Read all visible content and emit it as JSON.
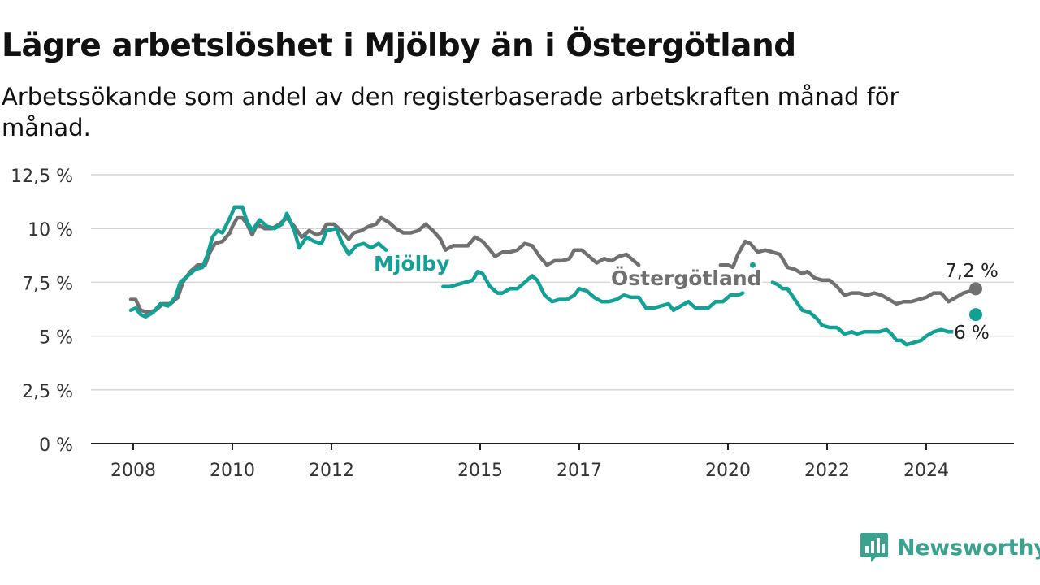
{
  "header": {
    "title": "Lägre arbetslöshet i Mjölby än i Östergötland",
    "subtitle": "Arbetssökande som andel av den registerbaserade arbetskraften månad för månad."
  },
  "brand": {
    "name": "Newsworthy",
    "icon": "newsworthy-logo-icon",
    "color": "#3aa38f"
  },
  "chart_data": {
    "type": "line",
    "title": "Lägre arbetslöshet i Mjölby än i Östergötland",
    "subtitle": "Arbetssökande som andel av den registerbaserade arbetskraften månad för månad.",
    "x_ticks": [
      {
        "label": "2008",
        "x": 2008.0
      },
      {
        "label": "2010",
        "x": 2010.0
      },
      {
        "label": "2012",
        "x": 2012.0
      },
      {
        "label": "2015",
        "x": 2015.0
      },
      {
        "label": "2017",
        "x": 2017.0
      },
      {
        "label": "2020",
        "x": 2020.0
      },
      {
        "label": "2022",
        "x": 2022.0
      },
      {
        "label": "2024",
        "x": 2024.0
      }
    ],
    "y_ticks": [
      {
        "label": "0 %",
        "value": 0
      },
      {
        "label": "2,5 %",
        "value": 2.5
      },
      {
        "label": "5 %",
        "value": 5
      },
      {
        "label": "7,5 %",
        "value": 7.5
      },
      {
        "label": "10 %",
        "value": 10
      },
      {
        "label": "12,5 %",
        "value": 12.5
      }
    ],
    "xlim": [
      2007.2,
      2025.7
    ],
    "ylim": [
      0,
      12.5
    ],
    "grid": true,
    "series": [
      {
        "name": "Östergötland",
        "color": "#707070",
        "end_label": "7,2 %",
        "points": [
          [
            2007.95,
            6.7
          ],
          [
            2008.05,
            6.7
          ],
          [
            2008.15,
            6.2
          ],
          [
            2008.3,
            6.1
          ],
          [
            2008.45,
            6.2
          ],
          [
            2008.6,
            6.5
          ],
          [
            2008.75,
            6.5
          ],
          [
            2008.9,
            6.8
          ],
          [
            2009.0,
            7.5
          ],
          [
            2009.15,
            8.0
          ],
          [
            2009.3,
            8.3
          ],
          [
            2009.45,
            8.3
          ],
          [
            2009.55,
            8.9
          ],
          [
            2009.65,
            9.3
          ],
          [
            2009.8,
            9.4
          ],
          [
            2009.95,
            9.8
          ],
          [
            2010.0,
            10.1
          ],
          [
            2010.1,
            10.5
          ],
          [
            2010.2,
            10.5
          ],
          [
            2010.3,
            10.2
          ],
          [
            2010.4,
            9.7
          ],
          [
            2010.5,
            10.2
          ],
          [
            2010.65,
            10.0
          ],
          [
            2010.8,
            10.0
          ],
          [
            2010.95,
            10.2
          ],
          [
            2011.1,
            10.5
          ],
          [
            2011.25,
            10.1
          ],
          [
            2011.4,
            9.6
          ],
          [
            2011.55,
            9.9
          ],
          [
            2011.7,
            9.7
          ],
          [
            2011.8,
            9.8
          ],
          [
            2011.9,
            10.2
          ],
          [
            2012.05,
            10.2
          ],
          [
            2012.2,
            9.9
          ],
          [
            2012.35,
            9.5
          ],
          [
            2012.45,
            9.8
          ],
          [
            2012.6,
            9.9
          ],
          [
            2012.75,
            10.1
          ],
          [
            2012.9,
            10.2
          ],
          [
            2013.0,
            10.5
          ],
          [
            2013.15,
            10.3
          ],
          [
            2013.3,
            10.0
          ],
          [
            2013.45,
            9.8
          ],
          [
            2013.6,
            9.8
          ],
          [
            2013.75,
            9.9
          ],
          [
            2013.9,
            10.2
          ],
          [
            2014.05,
            9.9
          ],
          [
            2014.2,
            9.5
          ],
          [
            2014.3,
            9.0
          ],
          [
            2014.45,
            9.2
          ],
          [
            2014.6,
            9.2
          ],
          [
            2014.75,
            9.2
          ],
          [
            2014.9,
            9.6
          ],
          [
            2015.05,
            9.4
          ],
          [
            2015.2,
            9.0
          ],
          [
            2015.3,
            8.7
          ],
          [
            2015.45,
            8.9
          ],
          [
            2015.6,
            8.9
          ],
          [
            2015.75,
            9.0
          ],
          [
            2015.9,
            9.3
          ],
          [
            2016.05,
            9.2
          ],
          [
            2016.2,
            8.7
          ],
          [
            2016.35,
            8.3
          ],
          [
            2016.5,
            8.5
          ],
          [
            2016.65,
            8.5
          ],
          [
            2016.8,
            8.6
          ],
          [
            2016.9,
            9.0
          ],
          [
            2017.05,
            9.0
          ],
          [
            2017.2,
            8.7
          ],
          [
            2017.35,
            8.4
          ],
          [
            2017.5,
            8.6
          ],
          [
            2017.65,
            8.5
          ],
          [
            2017.8,
            8.7
          ],
          [
            2017.95,
            8.8
          ],
          [
            2018.05,
            8.6
          ],
          [
            2018.2,
            8.3
          ]
        ],
        "points2": [
          [
            2019.85,
            8.3
          ],
          [
            2020.0,
            8.3
          ],
          [
            2020.1,
            8.2
          ],
          [
            2020.2,
            8.8
          ],
          [
            2020.35,
            9.4
          ],
          [
            2020.45,
            9.3
          ],
          [
            2020.6,
            8.9
          ],
          [
            2020.75,
            9.0
          ],
          [
            2020.9,
            8.9
          ],
          [
            2021.05,
            8.8
          ],
          [
            2021.2,
            8.2
          ],
          [
            2021.35,
            8.1
          ],
          [
            2021.5,
            7.9
          ],
          [
            2021.6,
            8.0
          ],
          [
            2021.75,
            7.7
          ],
          [
            2021.9,
            7.6
          ],
          [
            2022.05,
            7.6
          ],
          [
            2022.2,
            7.3
          ],
          [
            2022.35,
            6.9
          ],
          [
            2022.5,
            7.0
          ],
          [
            2022.65,
            7.0
          ],
          [
            2022.8,
            6.9
          ],
          [
            2022.95,
            7.0
          ],
          [
            2023.1,
            6.9
          ],
          [
            2023.25,
            6.7
          ],
          [
            2023.4,
            6.5
          ],
          [
            2023.55,
            6.6
          ],
          [
            2023.7,
            6.6
          ],
          [
            2023.85,
            6.7
          ],
          [
            2024.0,
            6.8
          ],
          [
            2024.15,
            7.0
          ],
          [
            2024.3,
            7.0
          ],
          [
            2024.45,
            6.6
          ],
          [
            2024.6,
            6.8
          ],
          [
            2024.75,
            7.0
          ],
          [
            2024.9,
            7.1
          ],
          [
            2025.0,
            7.2
          ]
        ]
      },
      {
        "name": "Mjölby",
        "color": "#13a196",
        "end_label": "6 %",
        "points": [
          [
            2007.95,
            6.2
          ],
          [
            2008.05,
            6.3
          ],
          [
            2008.15,
            6.0
          ],
          [
            2008.25,
            5.9
          ],
          [
            2008.4,
            6.1
          ],
          [
            2008.55,
            6.5
          ],
          [
            2008.7,
            6.4
          ],
          [
            2008.85,
            6.8
          ],
          [
            2008.95,
            7.5
          ],
          [
            2009.1,
            7.8
          ],
          [
            2009.25,
            8.1
          ],
          [
            2009.4,
            8.2
          ],
          [
            2009.5,
            8.8
          ],
          [
            2009.6,
            9.6
          ],
          [
            2009.7,
            9.9
          ],
          [
            2009.8,
            9.8
          ],
          [
            2009.95,
            10.5
          ],
          [
            2010.05,
            11.0
          ],
          [
            2010.2,
            11.0
          ],
          [
            2010.3,
            10.3
          ],
          [
            2010.4,
            9.9
          ],
          [
            2010.55,
            10.4
          ],
          [
            2010.7,
            10.1
          ],
          [
            2010.85,
            10.0
          ],
          [
            2011.0,
            10.2
          ],
          [
            2011.1,
            10.7
          ],
          [
            2011.25,
            9.9
          ],
          [
            2011.35,
            9.1
          ],
          [
            2011.5,
            9.6
          ],
          [
            2011.65,
            9.4
          ],
          [
            2011.8,
            9.3
          ],
          [
            2011.9,
            9.9
          ],
          [
            2012.1,
            10.0
          ],
          [
            2012.2,
            9.4
          ],
          [
            2012.35,
            8.8
          ],
          [
            2012.5,
            9.2
          ],
          [
            2012.65,
            9.3
          ],
          [
            2012.8,
            9.1
          ],
          [
            2012.95,
            9.3
          ],
          [
            2013.05,
            9.1
          ],
          [
            2013.1,
            9.0
          ]
        ],
        "points2": [
          [
            2014.25,
            7.3
          ],
          [
            2014.4,
            7.3
          ],
          [
            2014.55,
            7.4
          ],
          [
            2014.7,
            7.5
          ],
          [
            2014.85,
            7.6
          ],
          [
            2014.95,
            8.0
          ],
          [
            2015.05,
            7.9
          ],
          [
            2015.2,
            7.3
          ],
          [
            2015.35,
            7.0
          ],
          [
            2015.45,
            7.0
          ],
          [
            2015.6,
            7.2
          ],
          [
            2015.75,
            7.2
          ],
          [
            2015.9,
            7.5
          ],
          [
            2016.05,
            7.8
          ],
          [
            2016.15,
            7.6
          ],
          [
            2016.3,
            6.9
          ],
          [
            2016.45,
            6.6
          ],
          [
            2016.6,
            6.7
          ],
          [
            2016.75,
            6.7
          ],
          [
            2016.9,
            6.9
          ],
          [
            2017.0,
            7.2
          ],
          [
            2017.15,
            7.1
          ],
          [
            2017.3,
            6.8
          ],
          [
            2017.45,
            6.6
          ],
          [
            2017.6,
            6.6
          ],
          [
            2017.75,
            6.7
          ],
          [
            2017.9,
            6.9
          ],
          [
            2018.05,
            6.8
          ],
          [
            2018.2,
            6.8
          ],
          [
            2018.35,
            6.3
          ],
          [
            2018.5,
            6.3
          ],
          [
            2018.65,
            6.4
          ],
          [
            2018.8,
            6.5
          ],
          [
            2018.9,
            6.2
          ],
          [
            2019.05,
            6.4
          ],
          [
            2019.2,
            6.6
          ],
          [
            2019.35,
            6.3
          ],
          [
            2019.5,
            6.3
          ],
          [
            2019.6,
            6.3
          ],
          [
            2019.75,
            6.6
          ],
          [
            2019.9,
            6.6
          ],
          [
            2020.05,
            6.9
          ],
          [
            2020.2,
            6.9
          ],
          [
            2020.3,
            7.0
          ]
        ],
        "points3": [
          [
            2020.9,
            7.5
          ],
          [
            2021.0,
            7.4
          ],
          [
            2021.1,
            7.2
          ],
          [
            2021.2,
            7.2
          ],
          [
            2021.35,
            6.7
          ],
          [
            2021.5,
            6.2
          ],
          [
            2021.65,
            6.1
          ],
          [
            2021.8,
            5.8
          ],
          [
            2021.9,
            5.5
          ],
          [
            2022.05,
            5.4
          ],
          [
            2022.2,
            5.4
          ],
          [
            2022.35,
            5.1
          ],
          [
            2022.5,
            5.2
          ],
          [
            2022.6,
            5.1
          ],
          [
            2022.75,
            5.2
          ],
          [
            2022.9,
            5.2
          ],
          [
            2023.05,
            5.2
          ],
          [
            2023.2,
            5.3
          ],
          [
            2023.3,
            5.1
          ],
          [
            2023.4,
            4.8
          ],
          [
            2023.5,
            4.8
          ],
          [
            2023.6,
            4.6
          ],
          [
            2023.75,
            4.7
          ],
          [
            2023.9,
            4.8
          ],
          [
            2024.0,
            5.0
          ],
          [
            2024.15,
            5.2
          ],
          [
            2024.3,
            5.3
          ],
          [
            2024.45,
            5.2
          ],
          [
            2024.6,
            5.2
          ],
          [
            2024.7,
            5.2
          ]
        ],
        "endpoint": [
          2025.0,
          6.0
        ]
      }
    ]
  }
}
